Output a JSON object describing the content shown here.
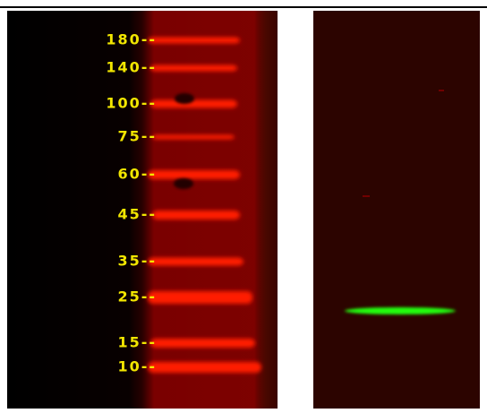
{
  "markers": [
    "180--",
    "140--",
    "100--",
    "75--",
    "60--",
    "45--",
    "35--",
    "25--",
    "15--",
    "10--"
  ]
}
